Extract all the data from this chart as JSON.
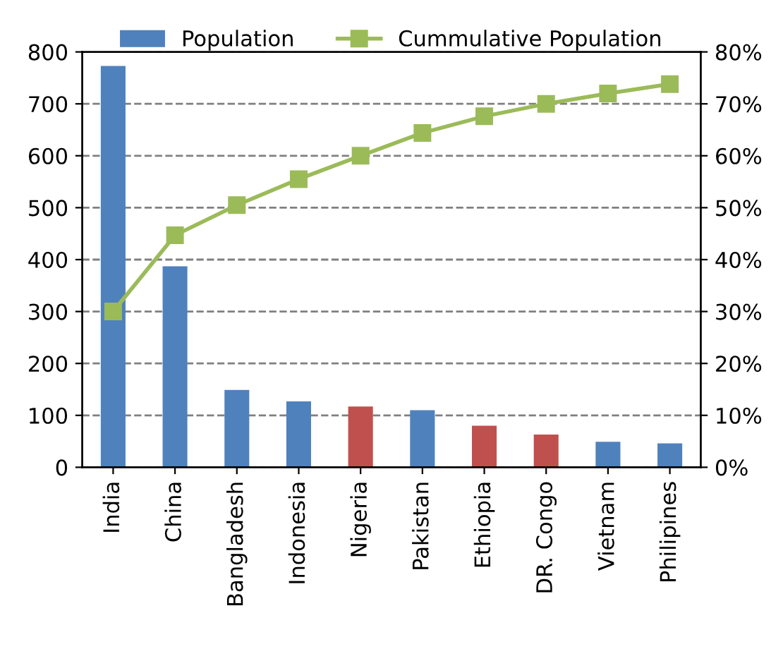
{
  "chart_data": {
    "type": "bar",
    "categories": [
      "India",
      "China",
      "Bangladesh",
      "Indonesia",
      "Nigeria",
      "Pakistan",
      "Ethiopia",
      "DR. Congo",
      "Vietnam",
      "Philipines"
    ],
    "series": [
      {
        "name": "Population",
        "color": "#4f81bd",
        "colors": [
          "#4f81bd",
          "#4f81bd",
          "#4f81bd",
          "#4f81bd",
          "#c0504d",
          "#4f81bd",
          "#c0504d",
          "#c0504d",
          "#4f81bd",
          "#4f81bd"
        ],
        "values": [
          773,
          387,
          149,
          127,
          117,
          110,
          80,
          63,
          49,
          46
        ]
      },
      {
        "name": "Cummulative Population",
        "type": "line",
        "axis": "y2",
        "color": "#9bbb59",
        "marker": "square",
        "values": [
          30,
          44.7,
          50.5,
          55.5,
          60,
          64.4,
          67.6,
          70,
          72,
          73.8
        ]
      }
    ],
    "ylim": [
      0,
      800
    ],
    "yticks": [
      0,
      100,
      200,
      300,
      400,
      500,
      600,
      700,
      800
    ],
    "y2lim": [
      0,
      80
    ],
    "y2ticks": [
      {
        "value": 0,
        "label": "0%"
      },
      {
        "value": 10,
        "label": "10%"
      },
      {
        "value": 20,
        "label": "20%"
      },
      {
        "value": 30,
        "label": "30%"
      },
      {
        "value": 40,
        "label": "40%"
      },
      {
        "value": 50,
        "label": "50%"
      },
      {
        "value": 60,
        "label": "60%"
      },
      {
        "value": 70,
        "label": "70%"
      },
      {
        "value": 80,
        "label": "80%"
      }
    ],
    "grid": "y",
    "legend": "top"
  }
}
